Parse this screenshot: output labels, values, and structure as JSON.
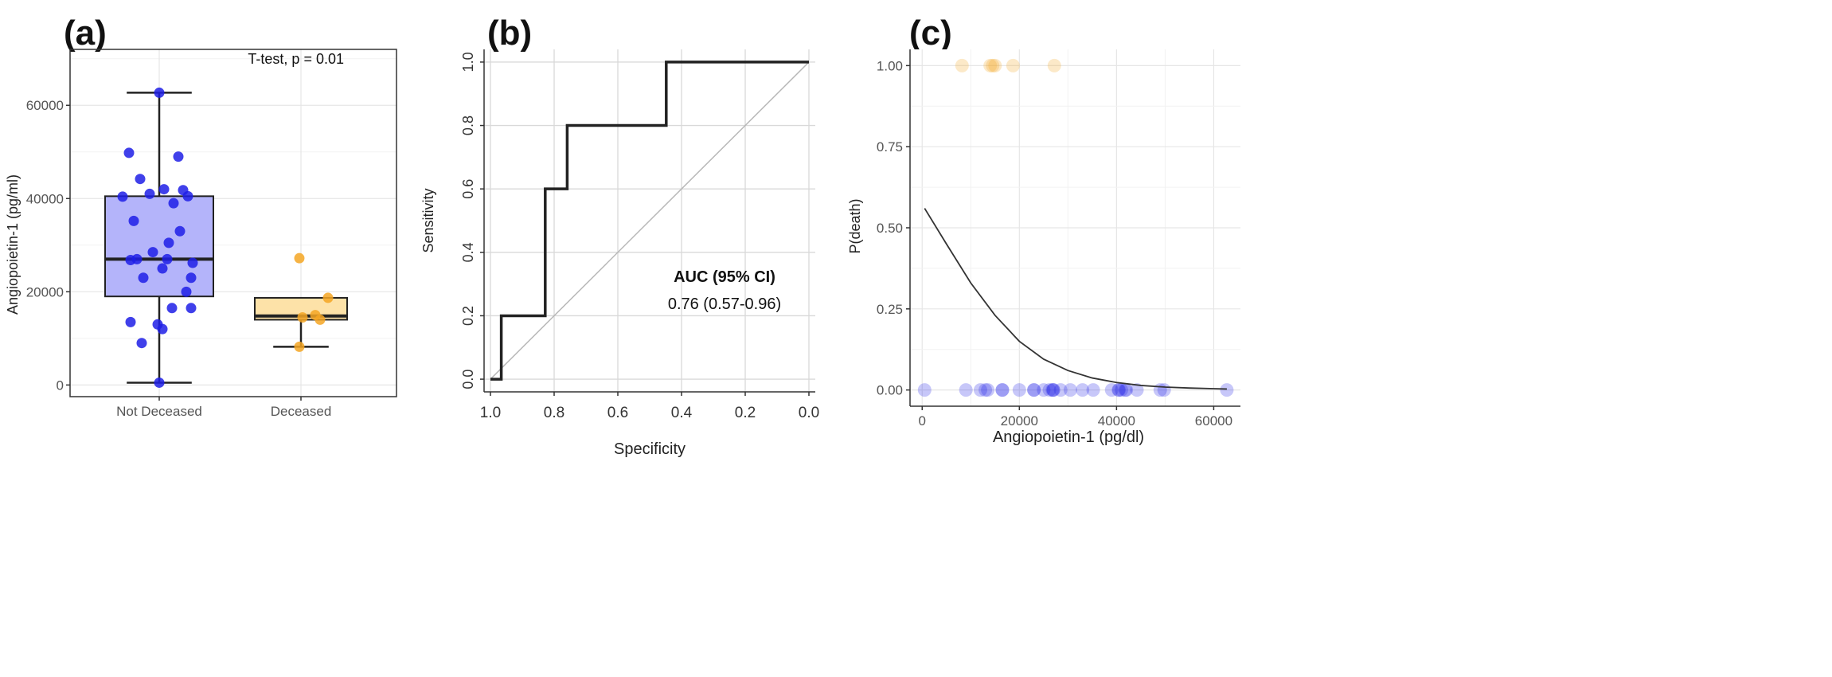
{
  "panels": {
    "a": {
      "label": "(a)"
    },
    "b": {
      "label": "(b)"
    },
    "c": {
      "label": "(c)"
    }
  },
  "colors": {
    "not_deceased": "#1f1fe6",
    "not_deceased_box": "#b4b4fa",
    "deceased": "#f5a623",
    "deceased_box": "#fde2a8",
    "curve": "#222222",
    "grid": "#e6e6e6"
  },
  "chart_data": [
    {
      "id": "a",
      "type": "box",
      "title": "",
      "xlabel": "",
      "ylabel": "Angiopoietin-1 (pg/ml)",
      "ylim": [
        -2500,
        72000
      ],
      "yticks": [
        0,
        20000,
        40000,
        60000
      ],
      "ytick_labels": [
        "0",
        "20000",
        "40000",
        "60000"
      ],
      "grid": true,
      "annotation": "T-test, p = 0.01",
      "categories": [
        "Not Deceased",
        "Deceased"
      ],
      "boxes": [
        {
          "category": "Not Deceased",
          "min": 500,
          "q1": 19000,
          "median": 27000,
          "q3": 40500,
          "max": 62700
        },
        {
          "category": "Deceased",
          "min": 8200,
          "q1": 14000,
          "median": 14800,
          "q3": 18700,
          "max": 18700
        }
      ],
      "points": [
        {
          "category": "Not Deceased",
          "values": [
            62700,
            49800,
            49000,
            44200,
            42000,
            41800,
            41000,
            40500,
            40400,
            39000,
            35200,
            33000,
            30500,
            28500,
            27000,
            27000,
            26800,
            26200,
            25000,
            23000,
            23000,
            20000,
            16500,
            16500,
            13500,
            13000,
            12000,
            9000,
            500
          ]
        },
        {
          "category": "Deceased",
          "values": [
            27200,
            18700,
            15000,
            14500,
            14000,
            8200
          ]
        }
      ]
    },
    {
      "id": "b",
      "type": "line",
      "title": "",
      "xlabel": "Specificity",
      "ylabel": "Sensitivity",
      "xlim": [
        1.0,
        0.0
      ],
      "ylim": [
        0.0,
        1.0
      ],
      "xticks": [
        1.0,
        0.8,
        0.6,
        0.4,
        0.2,
        0.0
      ],
      "xtick_labels": [
        "1.0",
        "0.8",
        "0.6",
        "0.4",
        "0.2",
        "0.0"
      ],
      "yticks": [
        0.0,
        0.2,
        0.4,
        0.6,
        0.8,
        1.0
      ],
      "ytick_labels": [
        "0.0",
        "0.2",
        "0.4",
        "0.6",
        "0.8",
        "1.0"
      ],
      "grid": true,
      "series": [
        {
          "x": [
            1.0,
            0.966,
            0.966,
            0.828,
            0.828,
            0.759,
            0.759,
            0.448,
            0.448,
            0.0
          ],
          "y": [
            0.0,
            0.0,
            0.2,
            0.2,
            0.6,
            0.6,
            0.8,
            0.8,
            1.0,
            1.0
          ]
        }
      ],
      "reference_line": {
        "x": [
          1.0,
          0.0
        ],
        "y": [
          0.0,
          1.0
        ]
      },
      "annotation_title": "AUC (95% CI)",
      "annotation_value": "0.76 (0.57-0.96)"
    },
    {
      "id": "c",
      "type": "scatter",
      "title": "",
      "xlabel": "Angiopoietin-1 (pg/dl)",
      "ylabel": "P(death)",
      "xlim": [
        -2500,
        65500
      ],
      "ylim": [
        -0.05,
        1.05
      ],
      "xticks": [
        0,
        20000,
        40000,
        60000
      ],
      "xtick_labels": [
        "0",
        "20000",
        "40000",
        "60000"
      ],
      "yticks": [
        0.0,
        0.25,
        0.5,
        0.75,
        1.0
      ],
      "ytick_labels": [
        "0.00",
        "0.25",
        "0.50",
        "0.75",
        "1.00"
      ],
      "grid": true,
      "series": [
        {
          "group": "Deceased",
          "y": 1.0,
          "x": [
            8200,
            14000,
            14500,
            15000,
            18700,
            27200
          ]
        },
        {
          "group": "Not Deceased",
          "y": 0.0,
          "x": [
            500,
            9000,
            12000,
            13000,
            13500,
            16500,
            16500,
            20000,
            23000,
            23000,
            25000,
            26200,
            26800,
            27000,
            27000,
            28500,
            30500,
            33000,
            35200,
            39000,
            40400,
            40500,
            41000,
            41800,
            42000,
            44200,
            49000,
            49800,
            62700
          ]
        }
      ],
      "fit_curve": {
        "x": [
          500,
          5000,
          10000,
          15000,
          20000,
          25000,
          30000,
          35000,
          40000,
          45000,
          50000,
          55000,
          60000,
          62700
        ],
        "y": [
          0.56,
          0.45,
          0.33,
          0.23,
          0.15,
          0.095,
          0.06,
          0.037,
          0.023,
          0.014,
          0.009,
          0.006,
          0.004,
          0.003
        ]
      }
    }
  ]
}
